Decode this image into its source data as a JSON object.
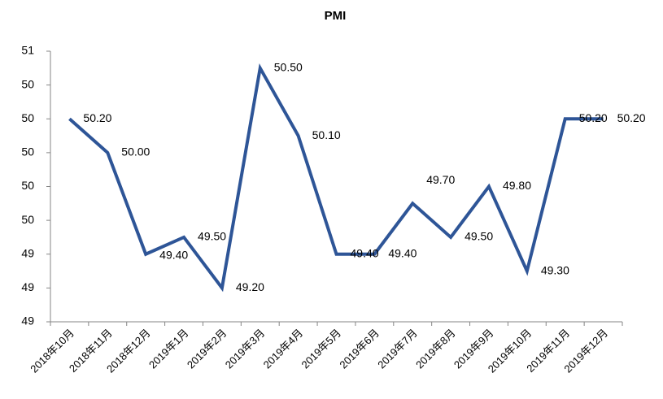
{
  "chart_data": {
    "type": "line",
    "title": "PMI",
    "categories": [
      "2018年10月",
      "2018年11月",
      "2018年12月",
      "2019年1月",
      "2019年2月",
      "2019年3月",
      "2019年4月",
      "2019年5月",
      "2019年6月",
      "2019年7月",
      "2019年8月",
      "2019年9月",
      "2019年10月",
      "2019年11月",
      "2019年12月"
    ],
    "series": [
      {
        "name": "PMI",
        "color": "#2e5597",
        "values": [
          50.2,
          50.0,
          49.4,
          49.5,
          49.2,
          50.5,
          50.1,
          49.4,
          49.4,
          49.7,
          49.5,
          49.8,
          49.3,
          50.2,
          50.2
        ],
        "value_labels": [
          "50.20",
          "50.00",
          "49.40",
          "49.50",
          "49.20",
          "50.50",
          "50.10",
          "49.40",
          "49.40",
          "49.70",
          "49.50",
          "49.80",
          "49.30",
          "50.20",
          "50.20"
        ]
      }
    ],
    "ylim": [
      49.0,
      50.6
    ],
    "yticks": [
      {
        "value": 49.0,
        "label": "49"
      },
      {
        "value": 49.2,
        "label": "49"
      },
      {
        "value": 49.4,
        "label": "49"
      },
      {
        "value": 49.6,
        "label": "50"
      },
      {
        "value": 49.8,
        "label": "50"
      },
      {
        "value": 50.0,
        "label": "50"
      },
      {
        "value": 50.2,
        "label": "50"
      },
      {
        "value": 50.4,
        "label": "50"
      },
      {
        "value": 50.6,
        "label": "51"
      }
    ]
  }
}
